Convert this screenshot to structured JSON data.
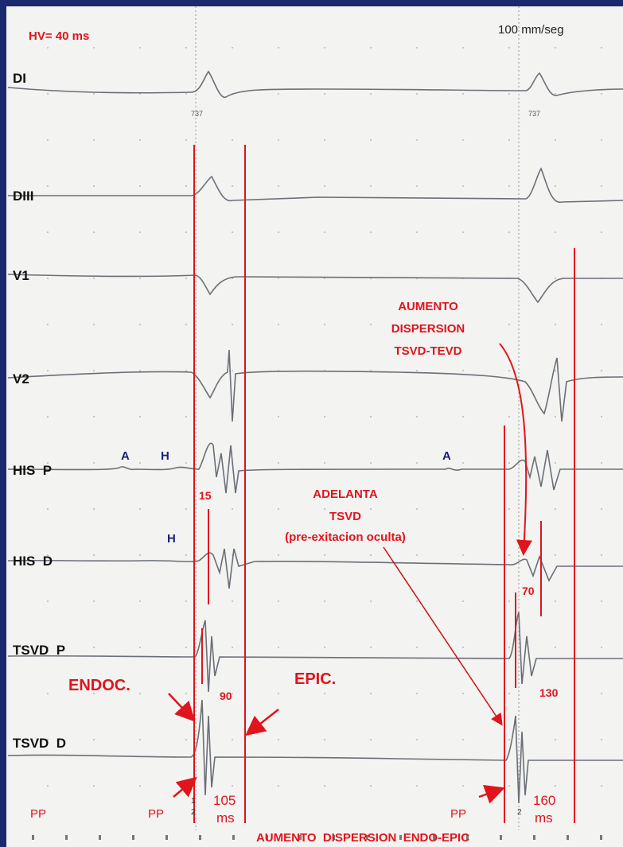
{
  "header": {
    "hv_label": "HV= 40 ms",
    "speed_label": "100 mm/seg"
  },
  "tick_marks": [
    "737",
    "737"
  ],
  "leads": [
    {
      "id": "di",
      "label": "DI"
    },
    {
      "id": "diii",
      "label": "DIII"
    },
    {
      "id": "v1",
      "label": "V1"
    },
    {
      "id": "v2",
      "label": "V2"
    },
    {
      "id": "his_p",
      "label": "HIS  P"
    },
    {
      "id": "his_d",
      "label": "HIS  D"
    },
    {
      "id": "tsvd_p",
      "label": "TSVD  P"
    },
    {
      "id": "tsvd_d",
      "label": "TSVD  D"
    }
  ],
  "markers": {
    "a1": "A",
    "h1": "H",
    "a2": "A",
    "h2": "H",
    "pp1": "PP",
    "pp2": "PP",
    "pp3": "PP",
    "stim1": "1",
    "stim2": "2",
    "stim3": "2"
  },
  "measurements": {
    "m15": "15",
    "m90": "90",
    "m105": "105",
    "ms1": "ms",
    "m70": "70",
    "m130": "130",
    "m160": "160",
    "ms2": "ms"
  },
  "annotations": {
    "endoc": "ENDOC.",
    "epic": "EPIC.",
    "aumento_disp_line1": "AUMENTO",
    "aumento_disp_line2": "DISPERSION",
    "aumento_disp_line3": "TSVD-TEVD",
    "adelanta_line1": "ADELANTA",
    "adelanta_line2": "TSVD",
    "adelanta_line3": "(pre-exitacion oculta)",
    "bottom_caption": "AUMENTO  DISPERSION  ENDO-EPIC"
  },
  "colors": {
    "frame": "#1b2a6e",
    "paper": "#f3f3f1",
    "trace": "#6a6f78",
    "annotation_red": "#e0141c",
    "marker_navy": "#1a1f78"
  }
}
